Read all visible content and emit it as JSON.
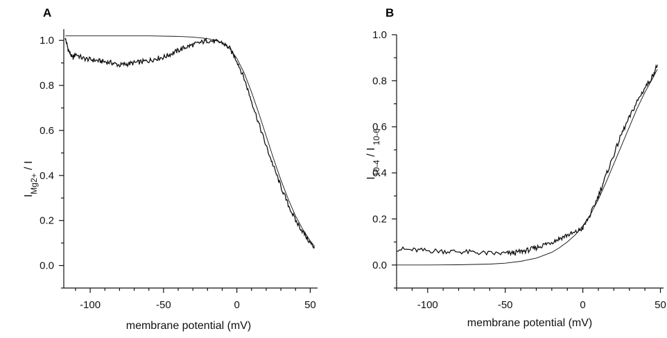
{
  "chart_data": [
    {
      "panel": "A",
      "type": "line",
      "xlabel": "membrane potential (mV)",
      "ylabel_main": "I",
      "ylabel_sub": "Mg2+",
      "ylabel_tail": " / I",
      "xlim": [
        -118,
        55
      ],
      "ylim": [
        -0.1,
        1.05
      ],
      "xticks": [
        -100,
        -50,
        0,
        50
      ],
      "yticks": [
        0.0,
        0.2,
        0.4,
        0.6,
        0.8,
        1.0
      ],
      "ytick_labels": [
        "0.0",
        "0.2",
        "0.4",
        "0.6",
        "0.8",
        "1.0"
      ],
      "series": [
        {
          "role": "measured",
          "x": [
            -117,
            -115,
            -112,
            -110,
            -105,
            -100,
            -95,
            -90,
            -85,
            -80,
            -75,
            -70,
            -65,
            -60,
            -55,
            -50,
            -45,
            -40,
            -35,
            -30,
            -25,
            -20,
            -15,
            -10,
            -5,
            0,
            5,
            10,
            15,
            20,
            25,
            30,
            35,
            40,
            45,
            50,
            53
          ],
          "y": [
            1.01,
            0.96,
            0.92,
            0.94,
            0.92,
            0.915,
            0.91,
            0.905,
            0.9,
            0.89,
            0.895,
            0.9,
            0.905,
            0.91,
            0.92,
            0.925,
            0.94,
            0.955,
            0.97,
            0.98,
            0.99,
            1.0,
            0.995,
            0.99,
            0.965,
            0.91,
            0.83,
            0.73,
            0.63,
            0.53,
            0.44,
            0.35,
            0.27,
            0.2,
            0.15,
            0.1,
            0.08
          ]
        },
        {
          "role": "fit",
          "x": [
            -117,
            -100,
            -80,
            -60,
            -40,
            -30,
            -20,
            -15,
            -10,
            -5,
            0,
            5,
            10,
            15,
            20,
            25,
            30,
            35,
            40,
            45,
            50,
            53
          ],
          "y": [
            1.02,
            1.02,
            1.02,
            1.02,
            1.018,
            1.015,
            1.008,
            1.0,
            0.99,
            0.965,
            0.92,
            0.855,
            0.77,
            0.675,
            0.575,
            0.475,
            0.38,
            0.295,
            0.22,
            0.16,
            0.11,
            0.085
          ]
        }
      ]
    },
    {
      "panel": "B",
      "type": "line",
      "xlabel": "membrane potential (mV)",
      "ylabel_main": "I",
      "ylabel_sub": "10-4",
      "ylabel_tail": " / I",
      "ylabel_sub2": " 10-6",
      "xlim": [
        -120,
        52
      ],
      "ylim": [
        -0.1,
        1.0
      ],
      "xticks": [
        -100,
        -50,
        0,
        50
      ],
      "yticks": [
        0.0,
        0.2,
        0.4,
        0.6,
        0.8,
        1.0
      ],
      "ytick_labels": [
        "0.0",
        "0.2",
        "0.4",
        "0.6",
        "0.8",
        "1.0"
      ],
      "series": [
        {
          "role": "measured",
          "x": [
            -120,
            -110,
            -100,
            -90,
            -80,
            -70,
            -60,
            -50,
            -45,
            -40,
            -35,
            -30,
            -25,
            -20,
            -15,
            -10,
            -5,
            0,
            5,
            10,
            15,
            20,
            25,
            30,
            35,
            40,
            45,
            48
          ],
          "y": [
            0.07,
            0.065,
            0.062,
            0.06,
            0.058,
            0.055,
            0.05,
            0.05,
            0.052,
            0.058,
            0.065,
            0.075,
            0.088,
            0.1,
            0.115,
            0.13,
            0.14,
            0.16,
            0.22,
            0.3,
            0.39,
            0.48,
            0.57,
            0.64,
            0.71,
            0.77,
            0.82,
            0.87
          ]
        },
        {
          "role": "fit",
          "x": [
            -120,
            -100,
            -80,
            -60,
            -50,
            -40,
            -30,
            -20,
            -15,
            -10,
            -5,
            0,
            5,
            10,
            15,
            20,
            25,
            30,
            35,
            40,
            45,
            48
          ],
          "y": [
            0.0,
            0.0,
            0.001,
            0.004,
            0.008,
            0.016,
            0.03,
            0.055,
            0.075,
            0.1,
            0.13,
            0.17,
            0.22,
            0.285,
            0.36,
            0.44,
            0.52,
            0.6,
            0.68,
            0.75,
            0.81,
            0.85
          ]
        }
      ]
    }
  ]
}
